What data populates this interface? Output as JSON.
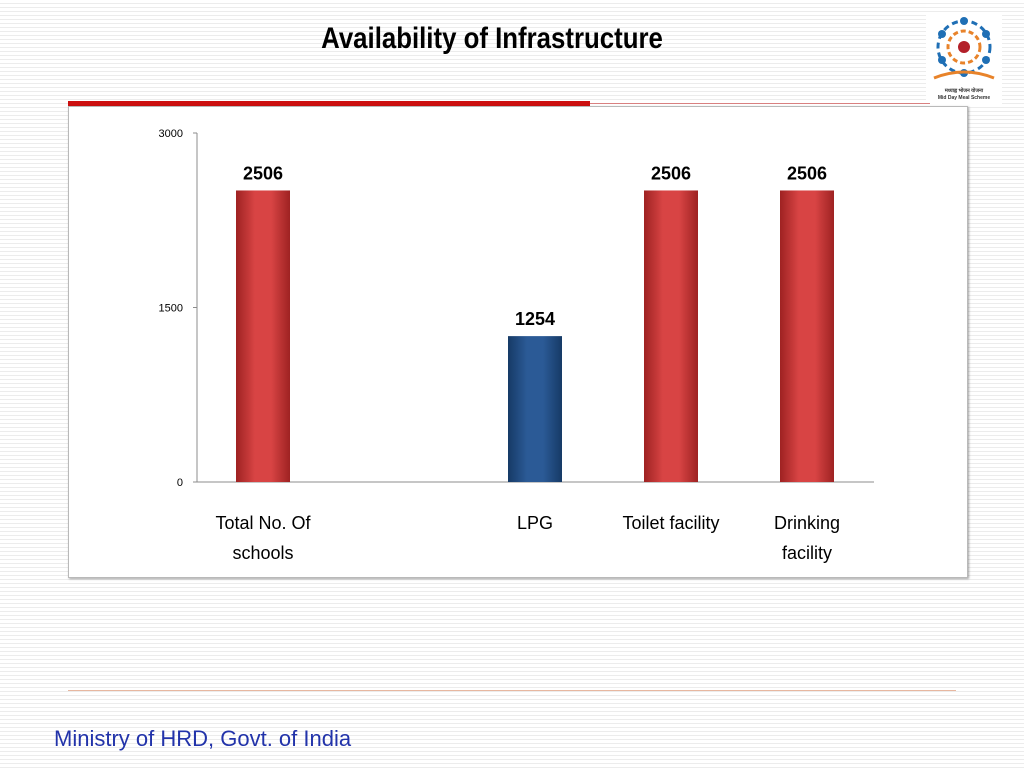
{
  "slide": {
    "title": "Availability of Infrastructure",
    "footer": "Ministry of HRD, Govt. of India"
  },
  "logo": {
    "line1": "मध्याह्न भोजन योजना",
    "line2": "Mid Day Meal Scheme",
    "colors": [
      "#1f6fb5",
      "#e8832a",
      "#b3202a"
    ]
  },
  "colors": {
    "accent_red": "#cc0f0f",
    "footer_blue": "#2233aa"
  },
  "chart_data": {
    "type": "bar",
    "title": "",
    "xlabel": "",
    "ylabel": "",
    "categories": [
      [
        "Total No. Of",
        "schools"
      ],
      [
        "LPG"
      ],
      [
        "Toilet facility"
      ],
      [
        "Drinking",
        "facility"
      ]
    ],
    "values": [
      2506,
      1254,
      2506,
      2506
    ],
    "data_labels": [
      "2506",
      "1254",
      "2506",
      "2506"
    ],
    "bar_colors": [
      "#cc3a3a",
      "#234e86",
      "#cc3a3a",
      "#cc3a3a"
    ],
    "ylim": [
      0,
      3000
    ],
    "yticks": [
      0,
      1500,
      3000
    ],
    "ytick_labels": [
      "0",
      "1500",
      "3000"
    ],
    "grid": false,
    "legend": "none"
  }
}
